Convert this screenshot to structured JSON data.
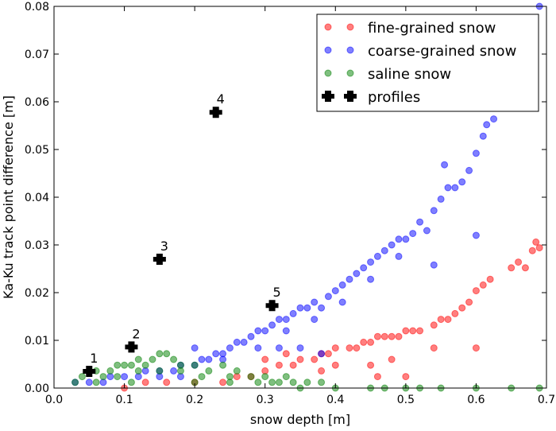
{
  "chart_data": {
    "type": "scatter",
    "xlabel": "snow depth [m]",
    "ylabel": "Ka-Ku track point difference [m]",
    "xlim": [
      0.0,
      0.7
    ],
    "ylim": [
      0.0,
      0.08
    ],
    "xticks": [
      "0.0",
      "0.1",
      "0.2",
      "0.3",
      "0.4",
      "0.5",
      "0.6",
      "0.7"
    ],
    "yticks": [
      "0.00",
      "0.01",
      "0.02",
      "0.03",
      "0.04",
      "0.05",
      "0.06",
      "0.07",
      "0.08"
    ],
    "legend_position": "top-right",
    "series": [
      {
        "name": "fine-grained snow",
        "color": "#ff0000",
        "points": [
          [
            0.1,
            0.0
          ],
          [
            0.13,
            0.0012
          ],
          [
            0.16,
            0.0012
          ],
          [
            0.2,
            0.0012
          ],
          [
            0.24,
            0.0012
          ],
          [
            0.26,
            0.0024
          ],
          [
            0.28,
            0.0024
          ],
          [
            0.3,
            0.0036
          ],
          [
            0.32,
            0.0048
          ],
          [
            0.34,
            0.0048
          ],
          [
            0.35,
            0.006
          ],
          [
            0.37,
            0.006
          ],
          [
            0.38,
            0.0072
          ],
          [
            0.39,
            0.0072
          ],
          [
            0.4,
            0.0084
          ],
          [
            0.42,
            0.0084
          ],
          [
            0.43,
            0.0084
          ],
          [
            0.44,
            0.0096
          ],
          [
            0.45,
            0.0096
          ],
          [
            0.46,
            0.0108
          ],
          [
            0.47,
            0.0108
          ],
          [
            0.48,
            0.0108
          ],
          [
            0.49,
            0.0108
          ],
          [
            0.5,
            0.012
          ],
          [
            0.51,
            0.012
          ],
          [
            0.52,
            0.012
          ],
          [
            0.54,
            0.0132
          ],
          [
            0.55,
            0.0144
          ],
          [
            0.56,
            0.0144
          ],
          [
            0.57,
            0.0156
          ],
          [
            0.58,
            0.0168
          ],
          [
            0.59,
            0.018
          ],
          [
            0.6,
            0.0204
          ],
          [
            0.61,
            0.0216
          ],
          [
            0.62,
            0.0228
          ],
          [
            0.65,
            0.0252
          ],
          [
            0.66,
            0.0264
          ],
          [
            0.67,
            0.0252
          ],
          [
            0.68,
            0.0288
          ],
          [
            0.685,
            0.0306
          ],
          [
            0.69,
            0.0294
          ],
          [
            0.54,
            0.0084
          ],
          [
            0.6,
            0.0084
          ],
          [
            0.48,
            0.006
          ],
          [
            0.46,
            0.0024
          ],
          [
            0.38,
            0.0036
          ],
          [
            0.5,
            0.0024
          ],
          [
            0.45,
            0.0048
          ],
          [
            0.4,
            0.0048
          ],
          [
            0.3,
            0.006
          ],
          [
            0.33,
            0.0072
          ]
        ]
      },
      {
        "name": "coarse-grained snow",
        "color": "#0000ff",
        "points": [
          [
            0.03,
            0.0012
          ],
          [
            0.05,
            0.0012
          ],
          [
            0.07,
            0.0012
          ],
          [
            0.08,
            0.0024
          ],
          [
            0.1,
            0.0024
          ],
          [
            0.12,
            0.0024
          ],
          [
            0.13,
            0.0036
          ],
          [
            0.15,
            0.0036
          ],
          [
            0.17,
            0.0036
          ],
          [
            0.18,
            0.0048
          ],
          [
            0.2,
            0.0048
          ],
          [
            0.21,
            0.006
          ],
          [
            0.22,
            0.006
          ],
          [
            0.23,
            0.0072
          ],
          [
            0.24,
            0.0072
          ],
          [
            0.25,
            0.0084
          ],
          [
            0.26,
            0.0096
          ],
          [
            0.27,
            0.0096
          ],
          [
            0.28,
            0.0108
          ],
          [
            0.29,
            0.012
          ],
          [
            0.3,
            0.012
          ],
          [
            0.31,
            0.0132
          ],
          [
            0.32,
            0.0144
          ],
          [
            0.33,
            0.0144
          ],
          [
            0.34,
            0.0156
          ],
          [
            0.35,
            0.0168
          ],
          [
            0.36,
            0.0168
          ],
          [
            0.37,
            0.018
          ],
          [
            0.38,
            0.0168
          ],
          [
            0.39,
            0.0192
          ],
          [
            0.4,
            0.0204
          ],
          [
            0.41,
            0.0216
          ],
          [
            0.42,
            0.0228
          ],
          [
            0.43,
            0.024
          ],
          [
            0.44,
            0.0252
          ],
          [
            0.45,
            0.0264
          ],
          [
            0.46,
            0.0276
          ],
          [
            0.47,
            0.0288
          ],
          [
            0.48,
            0.03
          ],
          [
            0.49,
            0.0312
          ],
          [
            0.5,
            0.0312
          ],
          [
            0.51,
            0.0324
          ],
          [
            0.52,
            0.0348
          ],
          [
            0.54,
            0.0372
          ],
          [
            0.55,
            0.0396
          ],
          [
            0.56,
            0.042
          ],
          [
            0.57,
            0.042
          ],
          [
            0.58,
            0.0432
          ],
          [
            0.59,
            0.0456
          ],
          [
            0.6,
            0.0492
          ],
          [
            0.61,
            0.0528
          ],
          [
            0.615,
            0.0552
          ],
          [
            0.625,
            0.0564
          ],
          [
            0.69,
            0.08
          ],
          [
            0.555,
            0.0468
          ],
          [
            0.6,
            0.032
          ],
          [
            0.54,
            0.0258
          ],
          [
            0.32,
            0.0084
          ],
          [
            0.35,
            0.0084
          ],
          [
            0.38,
            0.0072
          ],
          [
            0.2,
            0.0084
          ],
          [
            0.15,
            0.0024
          ],
          [
            0.18,
            0.0024
          ],
          [
            0.24,
            0.006
          ],
          [
            0.29,
            0.0084
          ],
          [
            0.33,
            0.012
          ],
          [
            0.37,
            0.0144
          ],
          [
            0.41,
            0.018
          ],
          [
            0.45,
            0.0228
          ],
          [
            0.49,
            0.0276
          ],
          [
            0.53,
            0.033
          ]
        ]
      },
      {
        "name": "saline snow",
        "color": "#008000",
        "points": [
          [
            0.03,
            0.0012
          ],
          [
            0.04,
            0.0024
          ],
          [
            0.05,
            0.0036
          ],
          [
            0.06,
            0.0036
          ],
          [
            0.07,
            0.0024
          ],
          [
            0.08,
            0.0036
          ],
          [
            0.09,
            0.0048
          ],
          [
            0.1,
            0.0048
          ],
          [
            0.11,
            0.0048
          ],
          [
            0.12,
            0.006
          ],
          [
            0.13,
            0.0048
          ],
          [
            0.14,
            0.006
          ],
          [
            0.15,
            0.0072
          ],
          [
            0.16,
            0.0072
          ],
          [
            0.17,
            0.006
          ],
          [
            0.18,
            0.0048
          ],
          [
            0.2,
            0.0048
          ],
          [
            0.22,
            0.0036
          ],
          [
            0.24,
            0.0048
          ],
          [
            0.26,
            0.0036
          ],
          [
            0.28,
            0.0024
          ],
          [
            0.3,
            0.0024
          ],
          [
            0.32,
            0.0012
          ],
          [
            0.34,
            0.0012
          ],
          [
            0.36,
            0.0012
          ],
          [
            0.38,
            0.0012
          ],
          [
            0.06,
            0.0012
          ],
          [
            0.09,
            0.0024
          ],
          [
            0.12,
            0.0036
          ],
          [
            0.15,
            0.0036
          ],
          [
            0.18,
            0.0036
          ],
          [
            0.21,
            0.0024
          ],
          [
            0.25,
            0.0024
          ],
          [
            0.29,
            0.0012
          ],
          [
            0.31,
            0.0012
          ],
          [
            0.33,
            0.0024
          ],
          [
            0.35,
            0.0
          ],
          [
            0.4,
            0.0
          ],
          [
            0.45,
            0.0
          ],
          [
            0.47,
            0.0
          ],
          [
            0.5,
            0.0
          ],
          [
            0.52,
            0.0
          ],
          [
            0.55,
            0.0
          ],
          [
            0.6,
            0.0
          ],
          [
            0.65,
            0.0
          ],
          [
            0.69,
            0.0
          ],
          [
            0.11,
            0.0012
          ],
          [
            0.2,
            0.0012
          ],
          [
            0.25,
            0.0012
          ]
        ]
      }
    ],
    "profiles": {
      "name": "profiles",
      "color": "#000000",
      "points": [
        {
          "label": "1",
          "x": 0.05,
          "y": 0.0035
        },
        {
          "label": "2",
          "x": 0.11,
          "y": 0.0086
        },
        {
          "label": "3",
          "x": 0.15,
          "y": 0.027
        },
        {
          "label": "4",
          "x": 0.23,
          "y": 0.0578
        },
        {
          "label": "5",
          "x": 0.31,
          "y": 0.0173
        }
      ]
    }
  }
}
